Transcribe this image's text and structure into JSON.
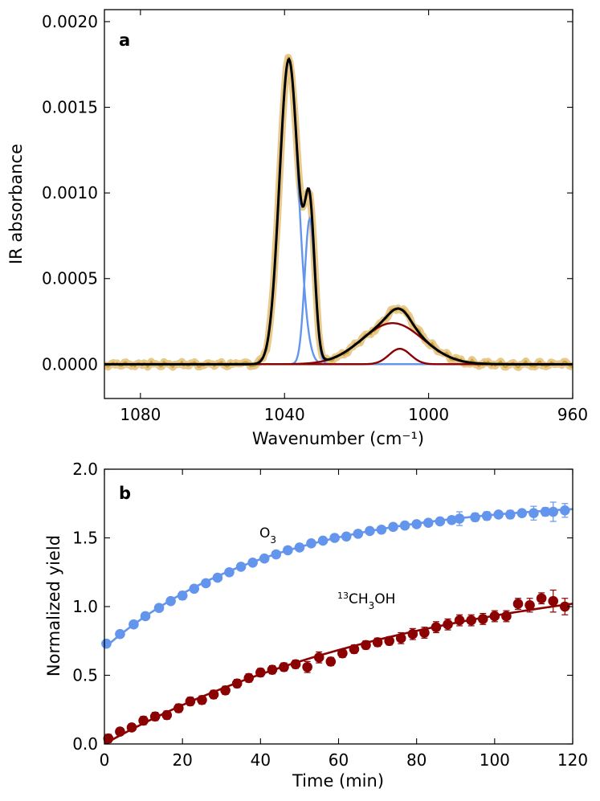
{
  "colors": {
    "raw_spectrum": "#c9a13a",
    "raw_halo": "#e8c98a",
    "blue_component": "#6495ed",
    "red_component": "#8b0000",
    "total_fit": "#000000",
    "o3_series": "#6495ed",
    "ch3oh_series": "#8b0000"
  },
  "chart_data": [
    {
      "panel": "a",
      "type": "line",
      "panel_label": "a",
      "xlabel": "Wavenumber (cm⁻¹)",
      "ylabel": "IR absorbance",
      "xlim": [
        1090,
        960
      ],
      "ylim": [
        -0.0002,
        0.00207
      ],
      "xticks": [
        1080,
        1040,
        1000,
        960
      ],
      "xtick_labels": [
        "1080",
        "1040",
        "1000",
        "960"
      ],
      "yticks": [
        0.0,
        0.0005,
        0.001,
        0.0015,
        0.002
      ],
      "ytick_labels": [
        "0.0000",
        "0.0005",
        "0.0010",
        "0.0015",
        "0.0020"
      ],
      "components": [
        {
          "name": "blue-component-1",
          "color_key": "blue_component",
          "center": 1038.8,
          "amplitude": 0.00178,
          "sigma": 2.6
        },
        {
          "name": "blue-component-2",
          "color_key": "blue_component",
          "center": 1033.0,
          "amplitude": 0.00085,
          "sigma": 1.4
        },
        {
          "name": "red-component-1",
          "color_key": "red_component",
          "center": 1010.0,
          "amplitude": 0.00024,
          "sigma": 8.5
        },
        {
          "name": "red-component-2",
          "color_key": "red_component",
          "center": 1008.0,
          "amplitude": 9e-05,
          "sigma": 3.0
        }
      ],
      "total_fit": {
        "name": "total-fit",
        "color_key": "total_fit"
      },
      "raw_spectrum": {
        "name": "raw-spectrum",
        "color_key": "raw_spectrum",
        "x_start": 1090,
        "x_end": 960,
        "step": 0.5,
        "noise_amplitude": 1.5e-05
      }
    },
    {
      "panel": "b",
      "type": "scatter",
      "panel_label": "b",
      "xlabel": "Time (min)",
      "ylabel": "Normalized yield",
      "xlim": [
        0,
        120
      ],
      "ylim": [
        0.0,
        2.0
      ],
      "xticks": [
        0,
        20,
        40,
        60,
        80,
        100,
        120
      ],
      "xtick_labels": [
        "0",
        "20",
        "40",
        "60",
        "80",
        "100",
        "120"
      ],
      "yticks": [
        0.0,
        0.5,
        1.0,
        1.5,
        2.0
      ],
      "ytick_labels": [
        "0.0",
        "0.5",
        "1.0",
        "1.5",
        "2.0"
      ],
      "series": [
        {
          "name": "O3",
          "label_prefix": "",
          "label_main": "O",
          "label_sub": "3",
          "label_suffix": "",
          "color_key": "o3_series",
          "fit": {
            "y0": 0.7,
            "a": 1.08,
            "tau": 44
          },
          "points": [
            [
              0.5,
              0.73,
              0.02
            ],
            [
              4,
              0.8,
              0.02
            ],
            [
              7.5,
              0.87,
              0.02
            ],
            [
              10.5,
              0.93,
              0.02
            ],
            [
              14,
              0.99,
              0.02
            ],
            [
              17,
              1.04,
              0.02
            ],
            [
              20,
              1.08,
              0.03
            ],
            [
              23,
              1.13,
              0.02
            ],
            [
              26,
              1.17,
              0.02
            ],
            [
              29,
              1.21,
              0.02
            ],
            [
              32,
              1.25,
              0.02
            ],
            [
              35,
              1.29,
              0.02
            ],
            [
              38,
              1.32,
              0.02
            ],
            [
              41,
              1.35,
              0.02
            ],
            [
              44,
              1.38,
              0.02
            ],
            [
              47,
              1.41,
              0.02
            ],
            [
              50,
              1.43,
              0.02
            ],
            [
              53,
              1.46,
              0.02
            ],
            [
              56,
              1.48,
              0.02
            ],
            [
              59,
              1.5,
              0.02
            ],
            [
              62,
              1.51,
              0.02
            ],
            [
              65,
              1.53,
              0.02
            ],
            [
              68,
              1.55,
              0.02
            ],
            [
              71,
              1.56,
              0.02
            ],
            [
              74,
              1.58,
              0.02
            ],
            [
              77,
              1.59,
              0.02
            ],
            [
              80,
              1.6,
              0.02
            ],
            [
              83,
              1.61,
              0.02
            ],
            [
              86,
              1.62,
              0.02
            ],
            [
              89,
              1.63,
              0.02
            ],
            [
              91,
              1.64,
              0.05
            ],
            [
              95,
              1.65,
              0.03
            ],
            [
              98,
              1.66,
              0.03
            ],
            [
              101,
              1.67,
              0.02
            ],
            [
              104,
              1.67,
              0.03
            ],
            [
              107,
              1.68,
              0.02
            ],
            [
              110,
              1.68,
              0.05
            ],
            [
              113,
              1.69,
              0.03
            ],
            [
              115,
              1.69,
              0.07
            ],
            [
              118,
              1.7,
              0.05
            ]
          ]
        },
        {
          "name": "13CH3OH",
          "label_prefix": "13",
          "label_main": "CH",
          "label_sub": "3",
          "label_suffix": "OH",
          "color_key": "ch3oh_series",
          "fit": {
            "y0": 0.0,
            "a": 1.35,
            "tau": 85
          },
          "points": [
            [
              1,
              0.04,
              0.03
            ],
            [
              4,
              0.09,
              0.02
            ],
            [
              7,
              0.12,
              0.02
            ],
            [
              10,
              0.17,
              0.03
            ],
            [
              13,
              0.2,
              0.03
            ],
            [
              16,
              0.21,
              0.03
            ],
            [
              19,
              0.26,
              0.03
            ],
            [
              22,
              0.31,
              0.03
            ],
            [
              25,
              0.32,
              0.03
            ],
            [
              28,
              0.36,
              0.03
            ],
            [
              31,
              0.39,
              0.03
            ],
            [
              34,
              0.44,
              0.03
            ],
            [
              37,
              0.48,
              0.03
            ],
            [
              40,
              0.52,
              0.03
            ],
            [
              43,
              0.54,
              0.03
            ],
            [
              46,
              0.56,
              0.03
            ],
            [
              49,
              0.58,
              0.03
            ],
            [
              52,
              0.56,
              0.04
            ],
            [
              55,
              0.63,
              0.04
            ],
            [
              58,
              0.6,
              0.03
            ],
            [
              61,
              0.66,
              0.03
            ],
            [
              64,
              0.69,
              0.03
            ],
            [
              67,
              0.72,
              0.03
            ],
            [
              70,
              0.74,
              0.03
            ],
            [
              73,
              0.75,
              0.03
            ],
            [
              76,
              0.77,
              0.04
            ],
            [
              79,
              0.8,
              0.04
            ],
            [
              82,
              0.81,
              0.04
            ],
            [
              85,
              0.85,
              0.04
            ],
            [
              88,
              0.87,
              0.04
            ],
            [
              91,
              0.9,
              0.04
            ],
            [
              94,
              0.9,
              0.04
            ],
            [
              97,
              0.91,
              0.04
            ],
            [
              100,
              0.93,
              0.04
            ],
            [
              103,
              0.93,
              0.04
            ],
            [
              106,
              1.02,
              0.04
            ],
            [
              109,
              1.01,
              0.05
            ],
            [
              112,
              1.06,
              0.04
            ],
            [
              115,
              1.04,
              0.08
            ],
            [
              118,
              1.0,
              0.06
            ]
          ]
        }
      ]
    }
  ]
}
